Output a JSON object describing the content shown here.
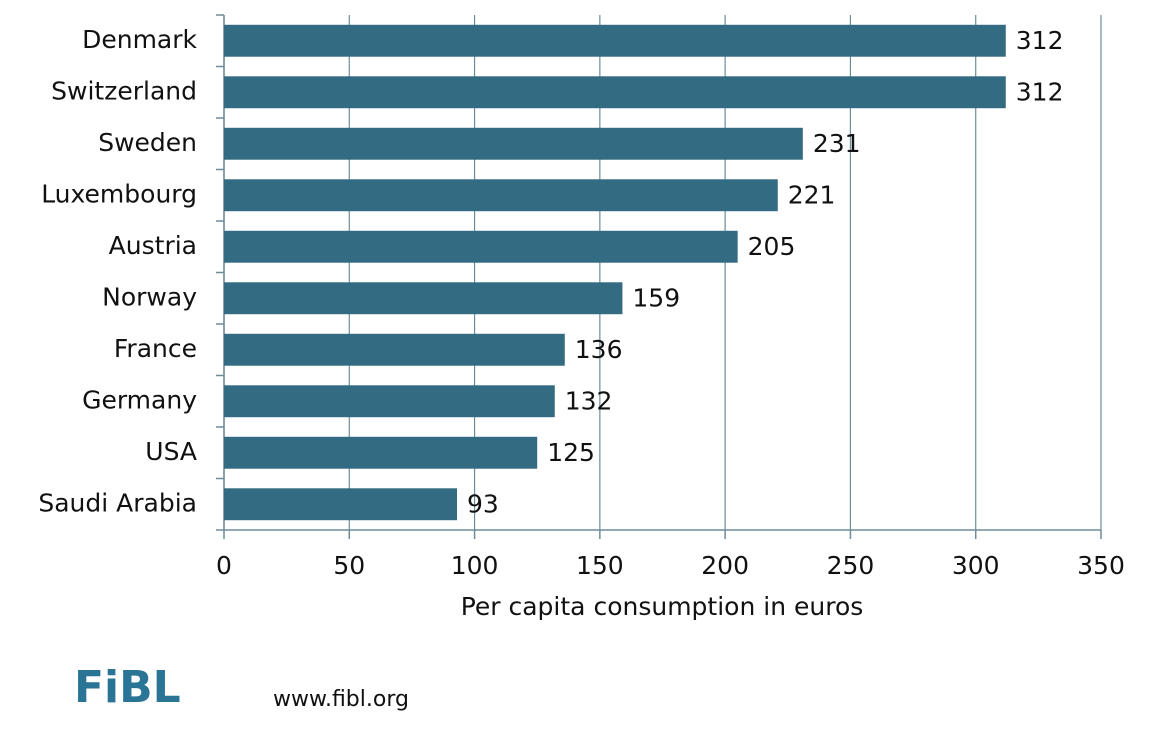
{
  "chart_data": {
    "type": "barh",
    "categories": [
      "Denmark",
      "Switzerland",
      "Sweden",
      "Luxembourg",
      "Austria",
      "Norway",
      "France",
      "Germany",
      "USA",
      "Saudi Arabia"
    ],
    "values": [
      312,
      312,
      231,
      221,
      205,
      159,
      136,
      132,
      125,
      93
    ],
    "color": "#336b82",
    "xlabel": "Per capita consumption in euros",
    "xlim": [
      0,
      350
    ],
    "xticks": [
      0,
      50,
      100,
      150,
      200,
      250,
      300,
      350
    ],
    "grid": true
  },
  "footer": {
    "logo": "FiBL",
    "url": "www.fibl.org"
  }
}
